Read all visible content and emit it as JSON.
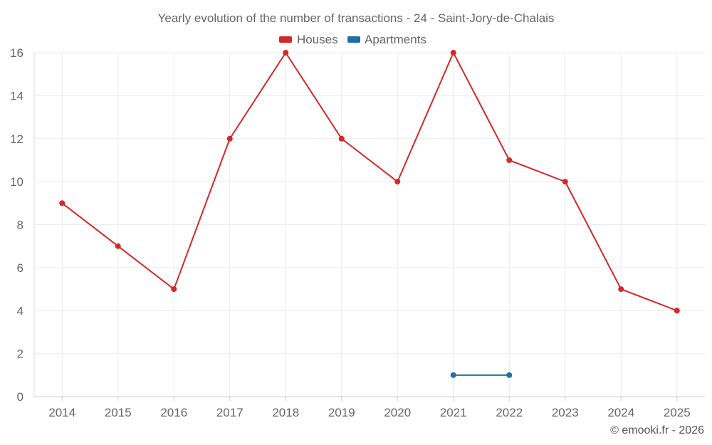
{
  "chart_data": {
    "type": "line",
    "title": "Yearly evolution of the number of transactions - 24 - Saint-Jory-de-Chalais",
    "xlabel": "",
    "ylabel": "",
    "categories": [
      "2014",
      "2015",
      "2016",
      "2017",
      "2018",
      "2019",
      "2020",
      "2021",
      "2022",
      "2023",
      "2024",
      "2025"
    ],
    "ylim": [
      0,
      16
    ],
    "yticks": [
      "0",
      "2",
      "4",
      "6",
      "8",
      "10",
      "12",
      "14",
      "16"
    ],
    "grid": true,
    "legend_position": "top-center",
    "series": [
      {
        "name": "Houses",
        "color": "#d62728",
        "values": [
          9,
          7,
          5,
          12,
          16,
          12,
          10,
          16,
          11,
          10,
          5,
          4
        ]
      },
      {
        "name": "Apartments",
        "color": "#1f6fa3",
        "values": [
          null,
          null,
          null,
          null,
          null,
          null,
          null,
          1,
          1,
          null,
          null,
          null
        ]
      }
    ],
    "credit": "© emooki.fr - 2026"
  }
}
